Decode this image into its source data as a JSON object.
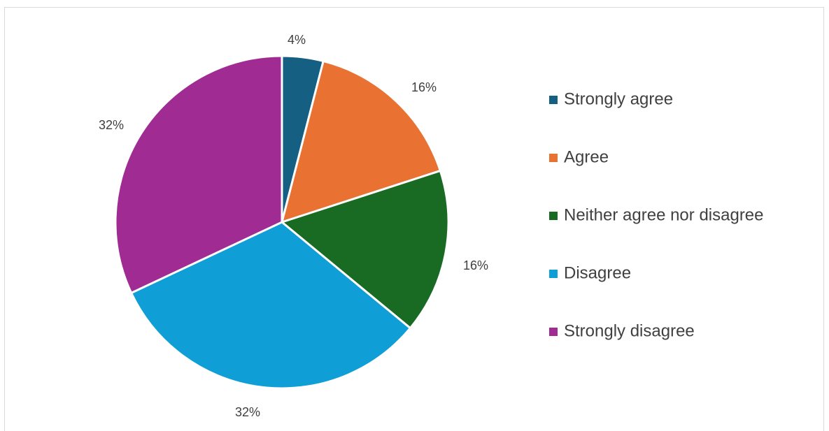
{
  "chart_data": {
    "type": "pie",
    "categories": [
      "Strongly agree",
      "Agree",
      "Neither agree nor disagree",
      "Disagree",
      "Strongly disagree"
    ],
    "values": [
      4,
      16,
      16,
      32,
      32
    ],
    "data_labels": [
      "4%",
      "16%",
      "16%",
      "32%",
      "32%"
    ],
    "colors": [
      "#156082",
      "#E97132",
      "#196B24",
      "#0F9ED5",
      "#A02B93"
    ],
    "legend_position": "right"
  }
}
